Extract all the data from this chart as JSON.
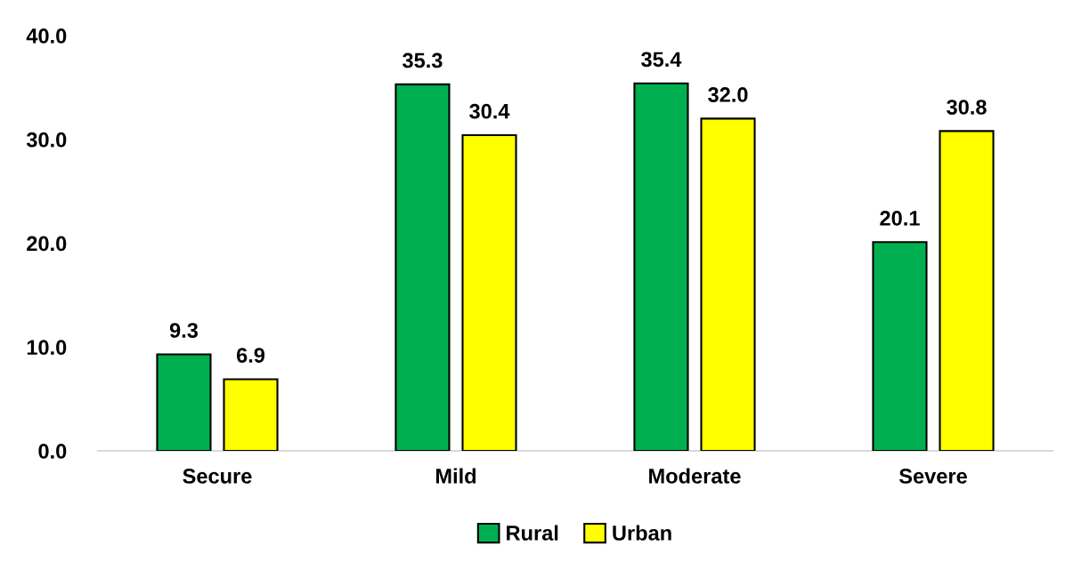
{
  "chart_data": {
    "type": "bar",
    "categories": [
      "Secure",
      "Mild",
      "Moderate",
      "Severe"
    ],
    "series": [
      {
        "name": "Rural",
        "color": "#00b050",
        "values": [
          9.3,
          35.3,
          35.4,
          20.1
        ],
        "value_labels": [
          "9.3",
          "35.3",
          "35.4",
          "20.1"
        ]
      },
      {
        "name": "Urban",
        "color": "#ffff00",
        "values": [
          6.9,
          30.4,
          32.0,
          30.8
        ],
        "value_labels": [
          "6.9",
          "30.4",
          "32.0",
          "30.8"
        ]
      }
    ],
    "ylim": [
      0,
      40
    ],
    "yticks": [
      {
        "value": 0,
        "label": "0.0"
      },
      {
        "value": 10,
        "label": "10.0"
      },
      {
        "value": 20,
        "label": "20.0"
      },
      {
        "value": 30,
        "label": "30.0"
      },
      {
        "value": 40,
        "label": "40.0"
      }
    ],
    "grid": false,
    "legend": "bottom"
  }
}
